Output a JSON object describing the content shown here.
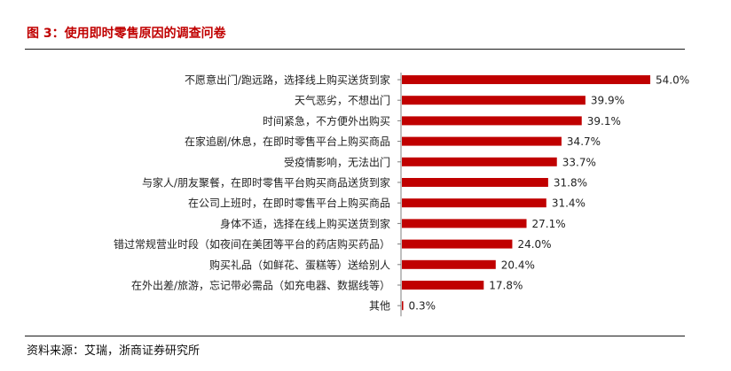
{
  "figure": {
    "title": "图 3：使用即时零售原因的调查问卷",
    "source": "资料来源：艾瑞，浙商证券研究所"
  },
  "colors": {
    "bar": "#c00000",
    "title": "#c00000",
    "axis": "#7f7f7f"
  },
  "chart_data": {
    "type": "bar",
    "orientation": "horizontal",
    "categories": [
      "不愿意出门/跑远路，选择线上购买送货到家",
      "天气恶劣，不想出门",
      "时间紧急，不方便外出购买",
      "在家追剧/休息，在即时零售平台上购买商品",
      "受疫情影响，无法出门",
      "与家人/朋友聚餐，在即时零售平台购买商品送货到家",
      "在公司上班时，在即时零售平台上购买商品",
      "身体不适，选择在线上购买送货到家",
      "错过常规营业时段（如夜间在美团等平台的药店购买药品）",
      "购买礼品（如鲜花、蛋糕等）送给别人",
      "在外出差/旅游，忘记带必需品（如充电器、数据线等）",
      "其他"
    ],
    "values": [
      54.0,
      39.9,
      39.1,
      34.7,
      33.7,
      31.8,
      31.4,
      27.1,
      24.0,
      20.4,
      17.8,
      0.3
    ],
    "value_labels": [
      "54.0%",
      "39.9%",
      "39.1%",
      "34.7%",
      "33.7%",
      "31.8%",
      "31.4%",
      "27.1%",
      "24.0%",
      "20.4%",
      "17.8%",
      "0.3%"
    ],
    "unit": "%",
    "xlim": [
      0,
      54.0
    ],
    "grid": false,
    "legend": "none"
  }
}
